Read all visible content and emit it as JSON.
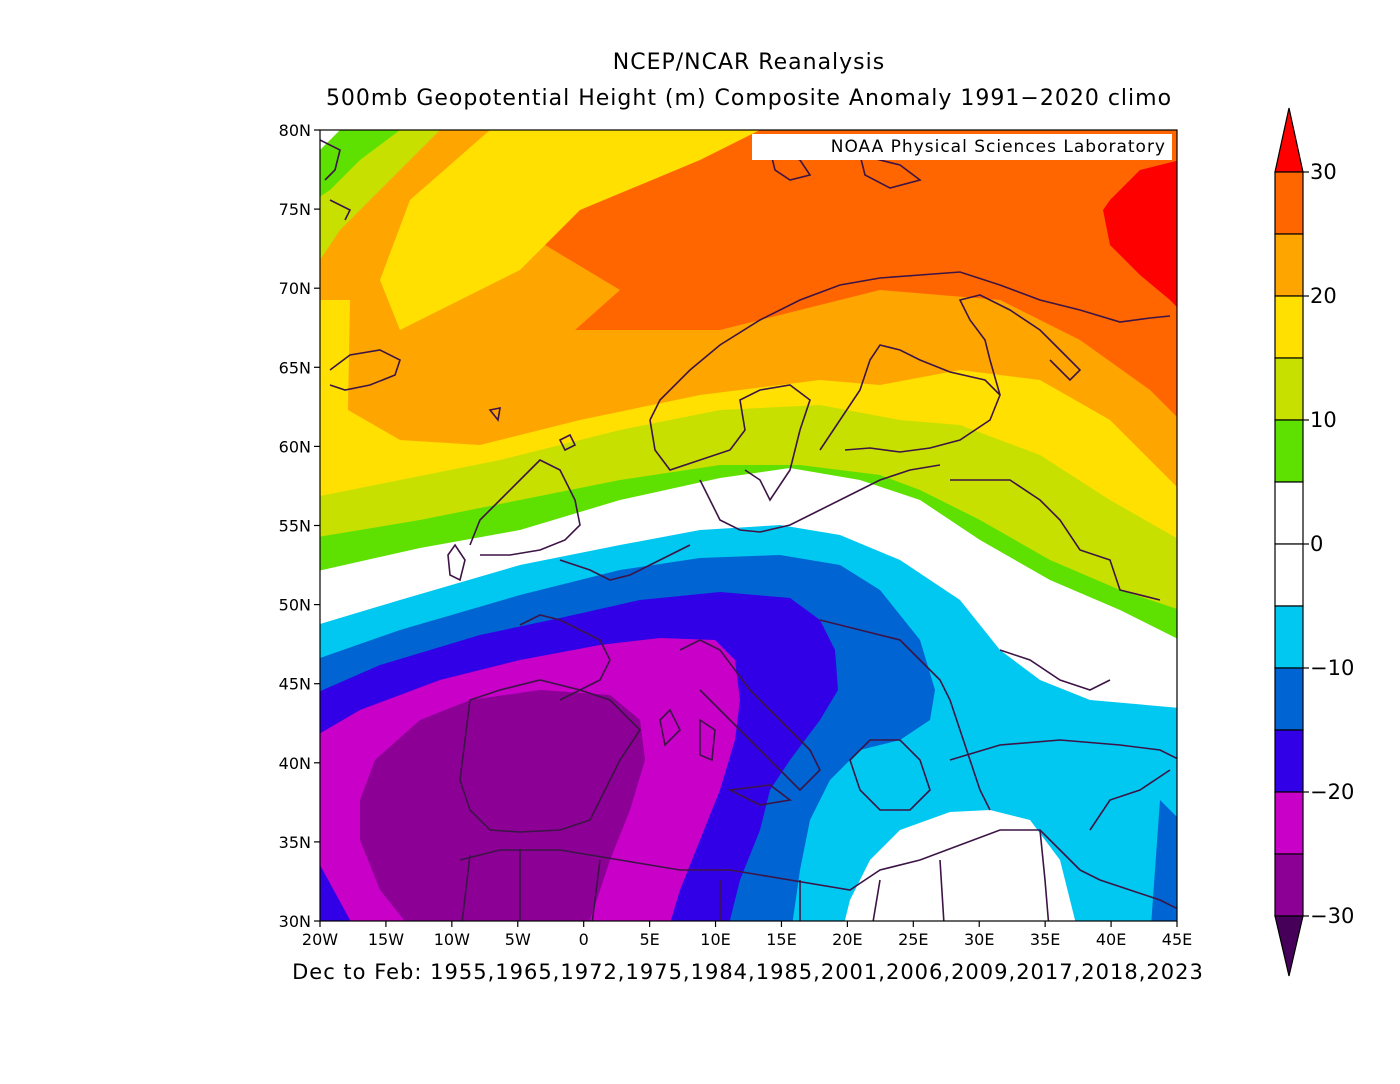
{
  "title_line1": "NCEP/NCAR Reanalysis",
  "title_line2": "500mb Geopotential Height (m) Composite Anomaly 1991−2020 climo",
  "credit": "NOAA Physical Sciences Laboratory",
  "caption": "Dec to Feb: 1955,1965,1972,1975,1984,1985,2001,2006,2009,2017,2018,2023",
  "map": {
    "lon_range": [
      -20,
      45
    ],
    "lat_range": [
      30,
      80
    ],
    "lat_ticks": [
      "30N",
      "35N",
      "40N",
      "45N",
      "50N",
      "55N",
      "60N",
      "65N",
      "70N",
      "75N",
      "80N"
    ],
    "lon_ticks": [
      "20W",
      "15W",
      "10W",
      "5W",
      "0",
      "5E",
      "10E",
      "15E",
      "20E",
      "25E",
      "30E",
      "35E",
      "40E",
      "45E"
    ]
  },
  "colorbar": {
    "labels": [
      "30",
      "20",
      "10",
      "0",
      "−10",
      "−20",
      "−30"
    ],
    "colors": {
      "above_30": "#ff0000",
      "25_30": "#ff6600",
      "20_25": "#ffa500",
      "15_20": "#ffe000",
      "10_15": "#c8e000",
      "5_10": "#5ee000",
      "neutral": "#ffffff",
      "m10_m5": "#00c8f0",
      "m15_m10": "#0064d2",
      "m20_m15": "#3200e6",
      "m25_m20": "#c800c8",
      "m30_m25": "#8c0096",
      "below_m30": "#46005a"
    }
  }
}
